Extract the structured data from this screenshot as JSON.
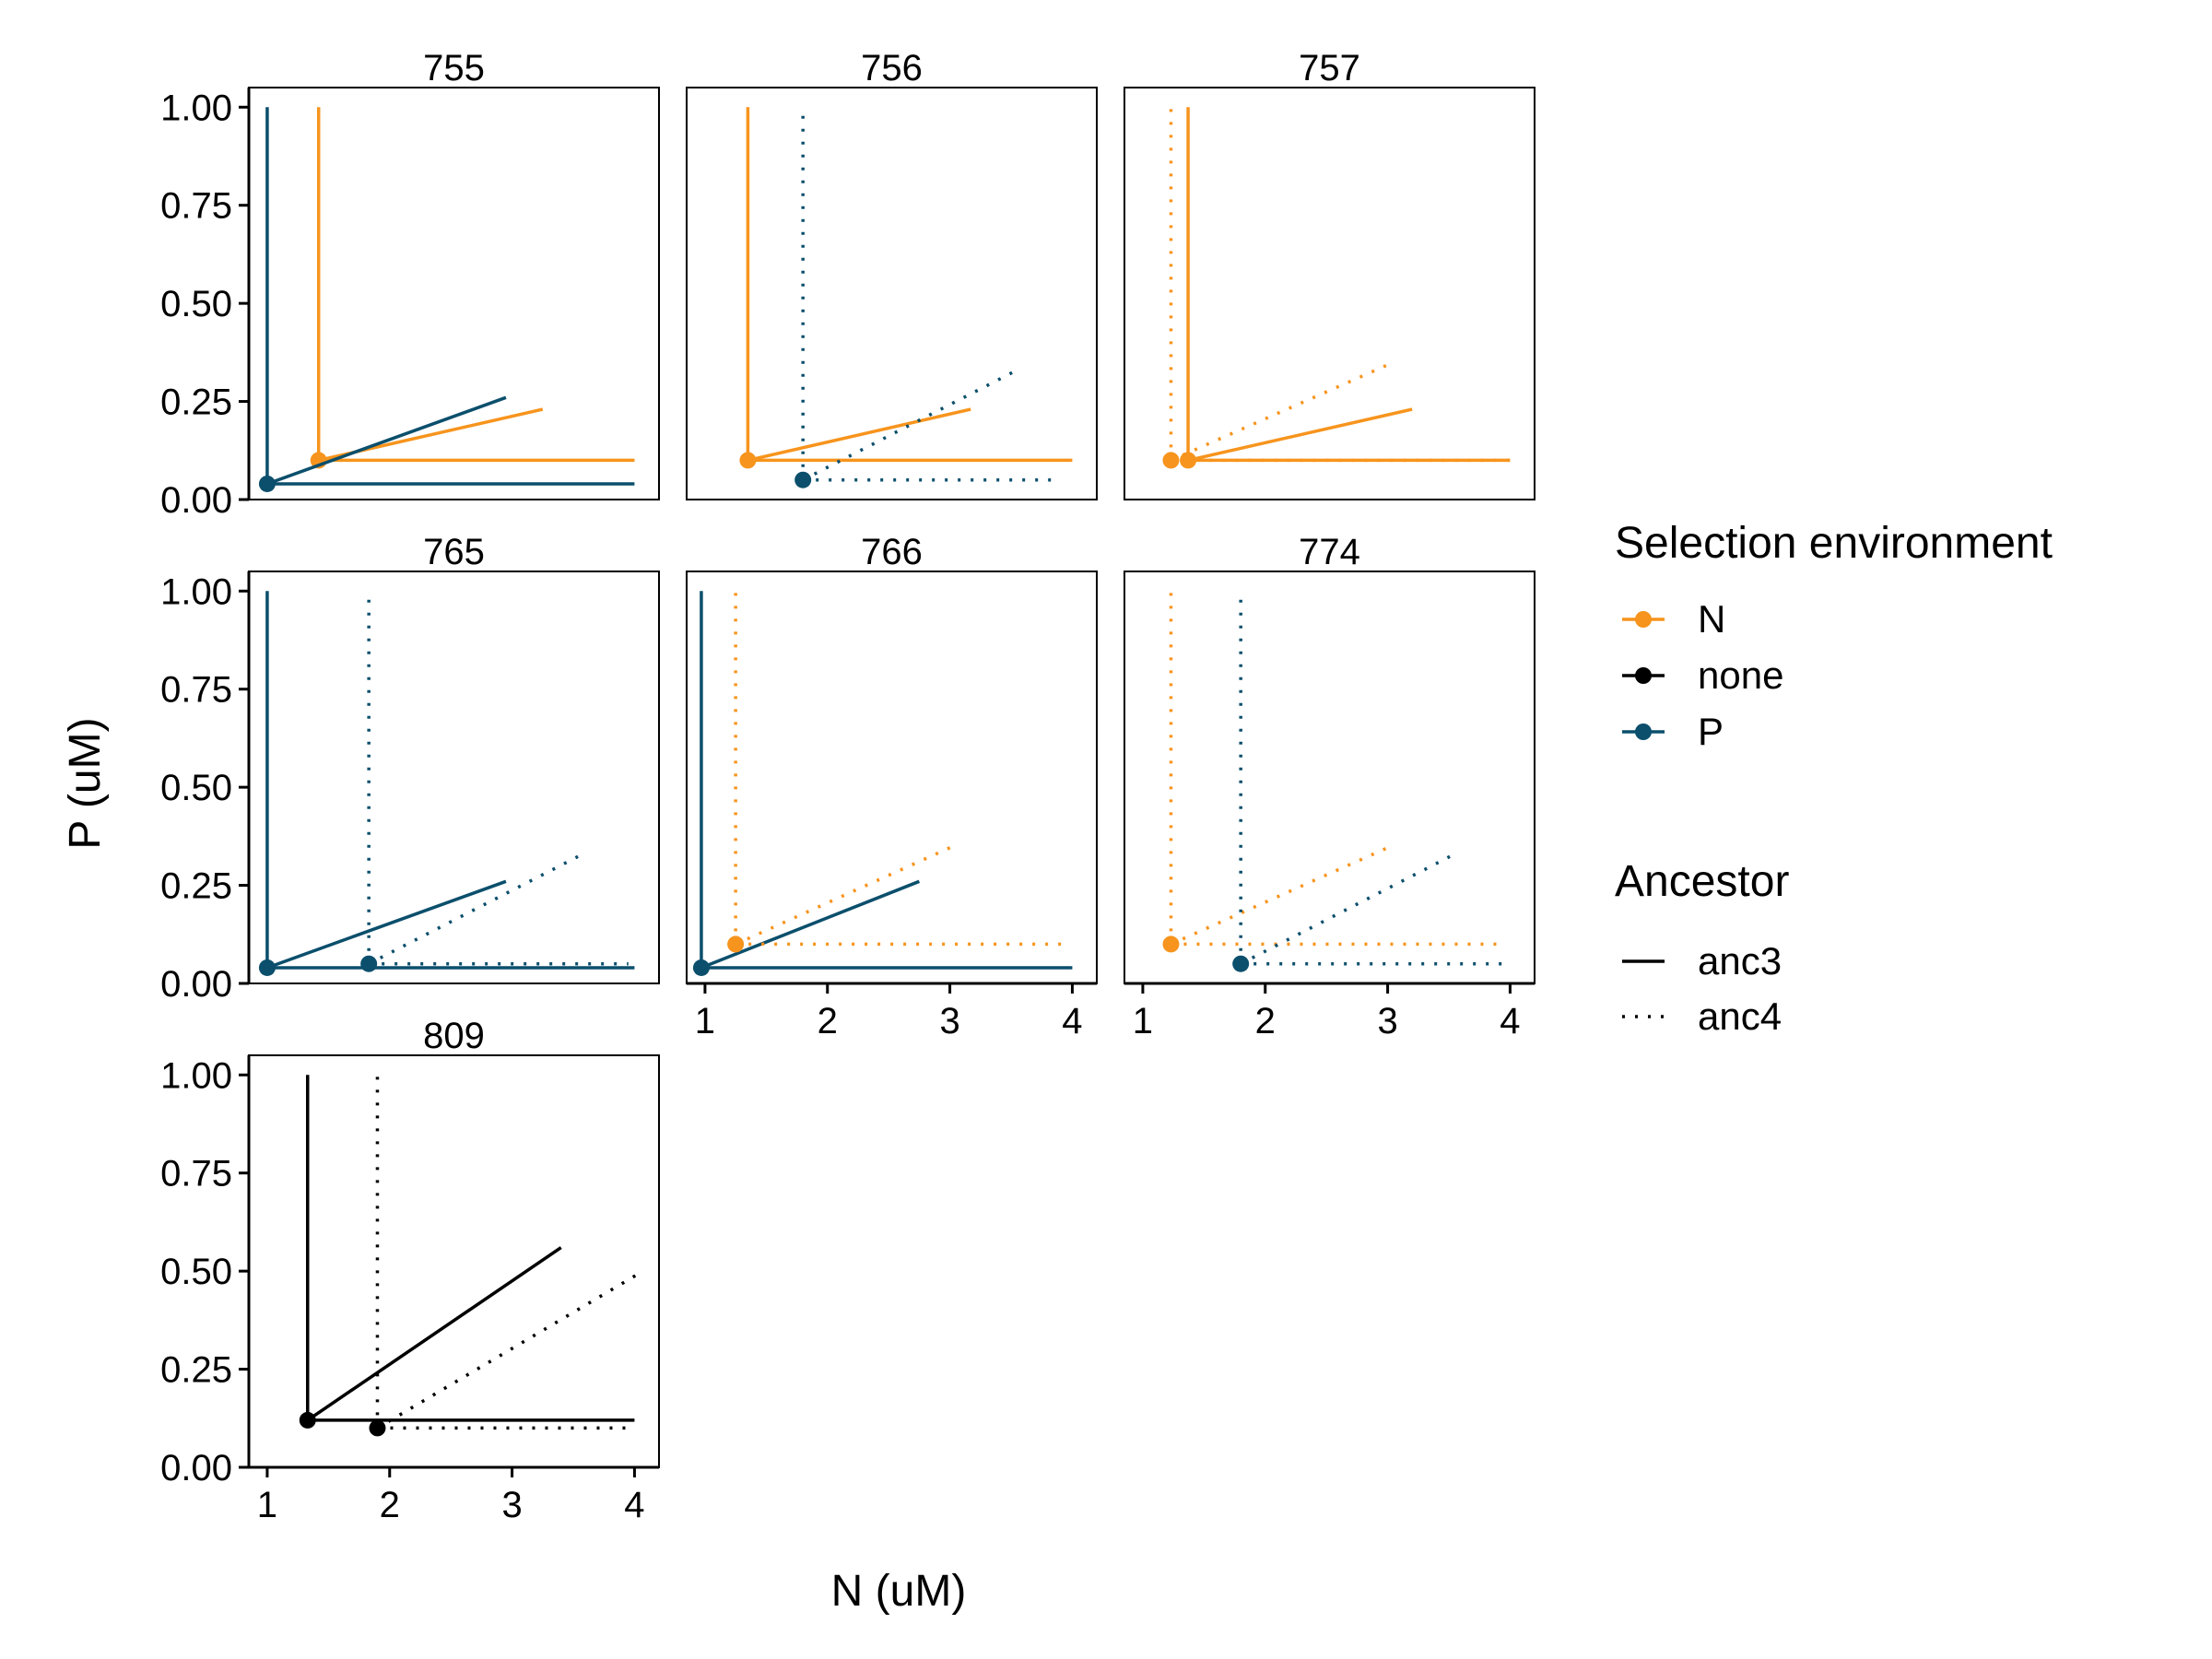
{
  "chart_data": {
    "type": "line",
    "layout": "faceted-grid",
    "xlabel": "N (uM)",
    "ylabel": "P (uM)",
    "xlim": [
      0.85,
      4.2
    ],
    "ylim": [
      0,
      1.05
    ],
    "x_ticks": [
      "1",
      "2",
      "3",
      "4"
    ],
    "y_ticks": [
      "0.00",
      "0.25",
      "0.50",
      "0.75",
      "1.00"
    ],
    "x_tick_values": [
      1,
      2,
      3,
      4
    ],
    "y_tick_values": [
      0,
      0.25,
      0.5,
      0.75,
      1.0
    ],
    "colors": {
      "N": "#f7941d",
      "none": "#000000",
      "P": "#0b4f6c"
    },
    "legend": {
      "placement": "right",
      "color_title": "Selection environment",
      "color_entries": [
        {
          "label": "N",
          "key": "N"
        },
        {
          "label": "none",
          "key": "none"
        },
        {
          "label": "P",
          "key": "P"
        }
      ],
      "linetype_title": "Ancestor",
      "linetype_entries": [
        {
          "label": "anc3",
          "dash": "solid"
        },
        {
          "label": "anc4",
          "dash": "dotted"
        }
      ]
    },
    "panels": [
      {
        "title": "755",
        "lines": [
          {
            "env": "N",
            "ancestor": "anc3",
            "x": 1.42,
            "y": 0.1,
            "vertical_to": 1.0,
            "horizontal_to": 4.0,
            "slope_end": [
              3.25,
              0.23
            ]
          },
          {
            "env": "P",
            "ancestor": "anc3",
            "x": 1.0,
            "y": 0.04,
            "vertical_to": 1.0,
            "horizontal_to": 4.0,
            "slope_end": [
              2.95,
              0.26
            ]
          }
        ]
      },
      {
        "title": "756",
        "lines": [
          {
            "env": "N",
            "ancestor": "anc3",
            "x": 1.35,
            "y": 0.1,
            "vertical_to": 1.0,
            "horizontal_to": 4.0,
            "slope_end": [
              3.17,
              0.23
            ]
          },
          {
            "env": "P",
            "ancestor": "anc4",
            "x": 1.8,
            "y": 0.05,
            "vertical_to": 1.0,
            "horizontal_to": 3.9,
            "slope_end": [
              3.55,
              0.33
            ]
          }
        ]
      },
      {
        "title": "757",
        "lines": [
          {
            "env": "N",
            "ancestor": "anc3",
            "x": 1.37,
            "y": 0.1,
            "vertical_to": 1.0,
            "horizontal_to": 4.0,
            "slope_end": [
              3.2,
              0.23
            ]
          },
          {
            "env": "N",
            "ancestor": "anc4",
            "x": 1.23,
            "y": 0.1,
            "vertical_to": 1.0,
            "horizontal_to": 4.0,
            "slope_end": [
              3.05,
              0.35
            ]
          }
        ]
      },
      {
        "title": "765",
        "lines": [
          {
            "env": "P",
            "ancestor": "anc3",
            "x": 1.0,
            "y": 0.04,
            "vertical_to": 1.0,
            "horizontal_to": 4.0,
            "slope_end": [
              2.95,
              0.26
            ]
          },
          {
            "env": "P",
            "ancestor": "anc4",
            "x": 1.83,
            "y": 0.05,
            "vertical_to": 1.0,
            "horizontal_to": 3.95,
            "slope_end": [
              3.58,
              0.33
            ]
          }
        ]
      },
      {
        "title": "766",
        "lines": [
          {
            "env": "P",
            "ancestor": "anc3",
            "x": 0.97,
            "y": 0.04,
            "vertical_to": 1.0,
            "horizontal_to": 4.0,
            "slope_end": [
              2.75,
              0.26
            ]
          },
          {
            "env": "N",
            "ancestor": "anc4",
            "x": 1.25,
            "y": 0.1,
            "vertical_to": 1.0,
            "horizontal_to": 3.95,
            "slope_end": [
              3.03,
              0.35
            ]
          }
        ]
      },
      {
        "title": "774",
        "lines": [
          {
            "env": "N",
            "ancestor": "anc4",
            "x": 1.23,
            "y": 0.1,
            "vertical_to": 1.0,
            "horizontal_to": 3.95,
            "slope_end": [
              3.03,
              0.35
            ]
          },
          {
            "env": "P",
            "ancestor": "anc4",
            "x": 1.8,
            "y": 0.05,
            "vertical_to": 1.0,
            "horizontal_to": 3.95,
            "slope_end": [
              3.55,
              0.33
            ]
          }
        ]
      },
      {
        "title": "809",
        "lines": [
          {
            "env": "none",
            "ancestor": "anc3",
            "x": 1.33,
            "y": 0.12,
            "vertical_to": 1.0,
            "horizontal_to": 4.0,
            "slope_end": [
              3.4,
              0.56
            ]
          },
          {
            "env": "none",
            "ancestor": "anc4",
            "x": 1.9,
            "y": 0.1,
            "vertical_to": 1.0,
            "horizontal_to": 4.0,
            "slope_end": [
              4.07,
              0.5
            ]
          }
        ]
      }
    ]
  }
}
